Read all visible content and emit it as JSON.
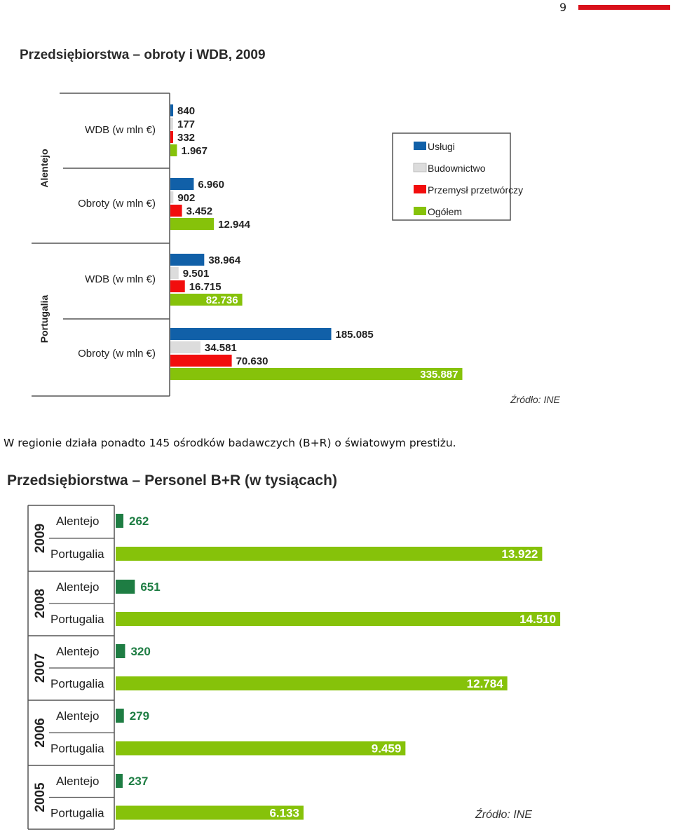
{
  "page": {
    "number": "9",
    "accent": "#d9111b"
  },
  "paragraph": "W regionie działa ponadto 145 ośrodków badawczych (B+R) o światowym prestiżu.",
  "chart_data": [
    {
      "type": "bar",
      "orientation": "horizontal",
      "title": "Przedsiębiorstwa – obroty i WDB, 2009",
      "source": "Źródło: INE",
      "legend_position": "right",
      "series": [
        {
          "name": "Usługi",
          "color": "#1160a8"
        },
        {
          "name": "Budownictwo",
          "color": "#dcdcdc"
        },
        {
          "name": "Przemysł przetwórczy",
          "color": "#f20d0d"
        },
        {
          "name": "Ogółem",
          "color": "#86c20a"
        }
      ],
      "groups": [
        {
          "region": "Alentejo",
          "metrics": [
            {
              "label": "WDB (w mln €)",
              "values": [
                840,
                177,
                332,
                1967
              ],
              "labels": [
                "840",
                "177",
                "332",
                "1.967"
              ]
            },
            {
              "label": "Obroty (w mln €)",
              "values": [
                6960,
                902,
                3452,
                12944
              ],
              "labels": [
                "6.960",
                "902",
                "3.452",
                "12.944"
              ]
            }
          ]
        },
        {
          "region": "Portugalia",
          "metrics": [
            {
              "label": "WDB (w mln €)",
              "values": [
                38964,
                9501,
                16715,
                82736
              ],
              "labels": [
                "38.964",
                "9.501",
                "16.715",
                "82.736"
              ]
            },
            {
              "label": "Obroty (w mln €)",
              "values": [
                185085,
                34581,
                70630,
                335887
              ],
              "labels": [
                "185.085",
                "34.581",
                "70.630",
                "335.887"
              ]
            }
          ]
        }
      ]
    },
    {
      "type": "bar",
      "orientation": "horizontal",
      "title": "Przedsiębiorstwa – Personel B+R (w tysiącach)",
      "source": "Źródło: INE",
      "colors": {
        "Alentejo": "#1e7d43",
        "Portugalia": "#86c20a"
      },
      "years": [
        {
          "year": "2009",
          "rows": [
            {
              "region": "Alentejo",
              "value": 262,
              "label": "262"
            },
            {
              "region": "Portugalia",
              "value": 13922,
              "label": "13.922"
            }
          ]
        },
        {
          "year": "2008",
          "rows": [
            {
              "region": "Alentejo",
              "value": 651,
              "label": "651"
            },
            {
              "region": "Portugalia",
              "value": 14510,
              "label": "14.510"
            }
          ]
        },
        {
          "year": "2007",
          "rows": [
            {
              "region": "Alentejo",
              "value": 320,
              "label": "320"
            },
            {
              "region": "Portugalia",
              "value": 12784,
              "label": "12.784"
            }
          ]
        },
        {
          "year": "2006",
          "rows": [
            {
              "region": "Alentejo",
              "value": 279,
              "label": "279"
            },
            {
              "region": "Portugalia",
              "value": 9459,
              "label": "9.459"
            }
          ]
        },
        {
          "year": "2005",
          "rows": [
            {
              "region": "Alentejo",
              "value": 237,
              "label": "237"
            },
            {
              "region": "Portugalia",
              "value": 6133,
              "label": "6.133"
            }
          ]
        }
      ]
    }
  ]
}
